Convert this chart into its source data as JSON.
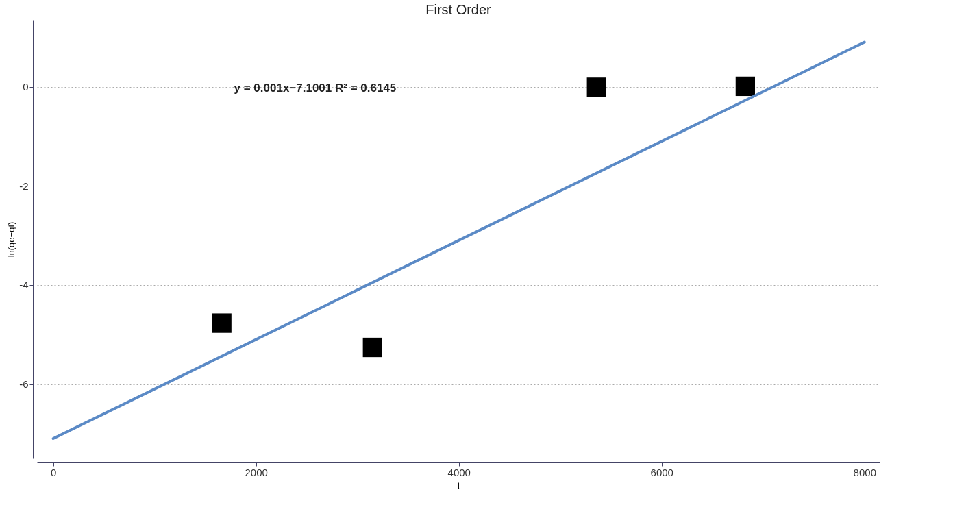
{
  "chart_data": {
    "type": "scatter",
    "title": "First Order",
    "xlabel": "t",
    "ylabel": "ln(qe−qt)",
    "annotations": [
      "y = 0.001x−7.1001 R² = 0.6145"
    ],
    "series": [
      {
        "color": "#000000",
        "marker": "square",
        "x": [
          1662,
          3149,
          5358,
          6825
        ],
        "values": [
          -4.77,
          -5.26,
          -0.01,
          0.01
        ]
      },
      {
        "type": "line",
        "color": "#5b8ac6",
        "x": [
          0,
          8000
        ],
        "values": [
          -7.1,
          0.9
        ]
      }
    ],
    "xlim": [
      -160,
      8150
    ],
    "xticks": [
      0,
      2000,
      4000,
      6000,
      8000
    ],
    "ylim": [
      -7.5,
      1.35
    ],
    "yticks": [
      -6,
      -4,
      -2,
      0
    ],
    "grid": "y"
  }
}
